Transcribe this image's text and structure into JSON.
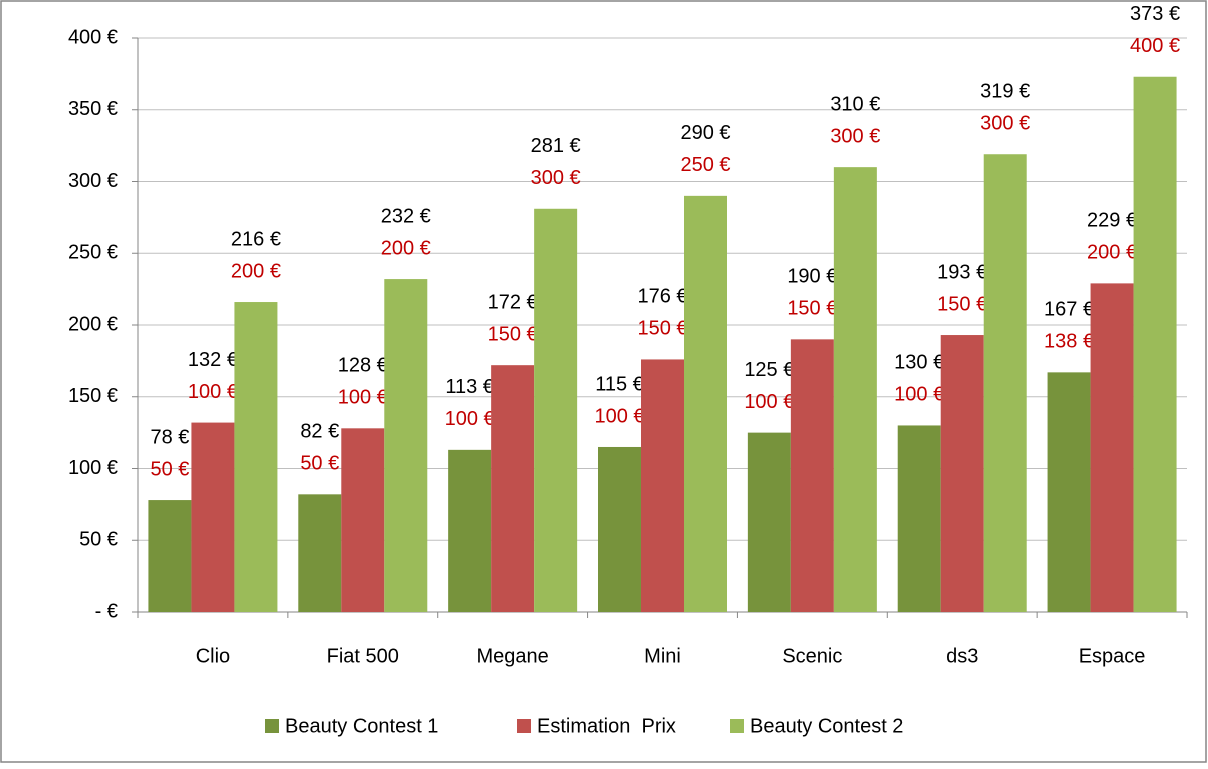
{
  "chart_data": {
    "type": "bar",
    "categories": [
      "Clio",
      "Fiat 500",
      "Megane",
      "Mini",
      "Scenic",
      "ds3",
      "Espace"
    ],
    "series": [
      {
        "name": "Beauty Contest 1",
        "color": "#77933c",
        "values": [
          78,
          82,
          113,
          115,
          125,
          130,
          167
        ],
        "value_labels": [
          "78 €",
          "82 €",
          "113 €",
          "115 €",
          "125 €",
          "130 €",
          "167 €"
        ],
        "red_labels": [
          "50 €",
          "50 €",
          "100 €",
          "100 €",
          "100 €",
          "100 €",
          "138 €"
        ]
      },
      {
        "name": "Estimation  Prix",
        "color": "#c0504d",
        "values": [
          132,
          128,
          172,
          176,
          190,
          193,
          229
        ],
        "value_labels": [
          "132 €",
          "128 €",
          "172 €",
          "176 €",
          "190 €",
          "193 €",
          "229 €"
        ],
        "red_labels": [
          "100 €",
          "100 €",
          "150 €",
          "150 €",
          "150 €",
          "150 €",
          "200 €"
        ]
      },
      {
        "name": "Beauty Contest 2",
        "color": "#9bbb59",
        "values": [
          216,
          232,
          281,
          290,
          310,
          319,
          373
        ],
        "value_labels": [
          "216 €",
          "232 €",
          "281 €",
          "290 €",
          "310 €",
          "319 €",
          "373 €"
        ],
        "red_labels": [
          "200 €",
          "200 €",
          "300 €",
          "250 €",
          "300 €",
          "300 €",
          "400 €"
        ]
      }
    ],
    "red_label_color": "#c00000",
    "ylim": [
      0,
      400
    ],
    "yticks": [
      {
        "value": 0,
        "label": "-   €"
      },
      {
        "value": 50,
        "label": "50 €"
      },
      {
        "value": 100,
        "label": "100 €"
      },
      {
        "value": 150,
        "label": "150 €"
      },
      {
        "value": 200,
        "label": "200 €"
      },
      {
        "value": 250,
        "label": "250 €"
      },
      {
        "value": 300,
        "label": "300 €"
      },
      {
        "value": 350,
        "label": "350 €"
      },
      {
        "value": 400,
        "label": "400 €"
      }
    ],
    "grid": true,
    "legend": "bottom"
  }
}
